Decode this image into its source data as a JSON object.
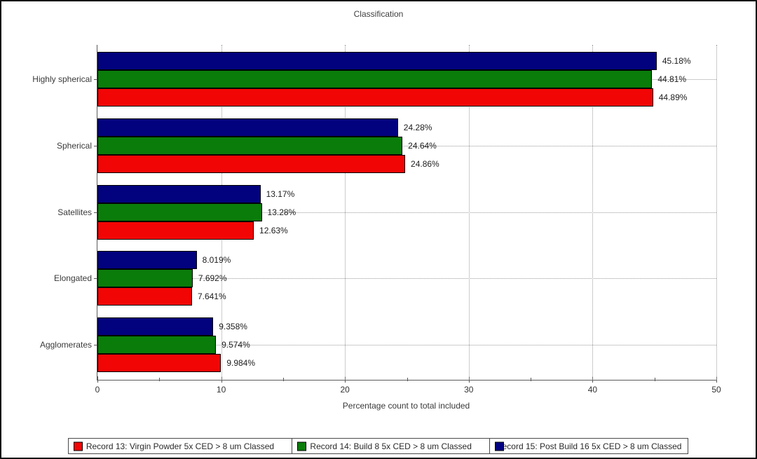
{
  "window": {
    "title": "Classification"
  },
  "chart_data": {
    "type": "bar",
    "orientation": "horizontal",
    "title": "Classification",
    "xlabel": "Percentage count to total included",
    "ylabel": "",
    "xlim": [
      0,
      50
    ],
    "x_major_ticks": [
      0,
      10,
      20,
      30,
      40,
      50
    ],
    "x_minor_ticks": [
      5,
      15,
      25,
      35,
      45
    ],
    "grid": {
      "vertical": "dotted at major ticks",
      "horizontal": "dotted at category centers"
    },
    "legend_position": "bottom",
    "categories": [
      "Highly spherical",
      "Spherical",
      "Satellites",
      "Elongated",
      "Agglomerates"
    ],
    "series": [
      {
        "name": "Record 13: Virgin Powder 5x CED > 8 um Classed",
        "color": "#f20505",
        "values": [
          44.89,
          24.86,
          12.63,
          7.641,
          9.984
        ],
        "value_labels": [
          "44.89%",
          "24.86%",
          "12.63%",
          "7.641%",
          "9.984%"
        ]
      },
      {
        "name": "Record 14: Build 8 5x CED > 8 um Classed",
        "color": "#0a7c0a",
        "values": [
          44.81,
          24.64,
          13.28,
          7.692,
          9.574
        ],
        "value_labels": [
          "44.81%",
          "24.64%",
          "13.28%",
          "7.692%",
          "9.574%"
        ]
      },
      {
        "name": "Record 15: Post Build 16 5x CED > 8 um Classed",
        "color": "#02027e",
        "values": [
          45.18,
          24.28,
          13.17,
          8.019,
          9.358
        ],
        "value_labels": [
          "45.18%",
          "24.28%",
          "13.17%",
          "8.019%",
          "9.358%"
        ]
      }
    ],
    "bar_draw_order_top_to_bottom": [
      2,
      1,
      0
    ],
    "legend_cell_widths": [
      "36%",
      "32%",
      "32%"
    ]
  }
}
